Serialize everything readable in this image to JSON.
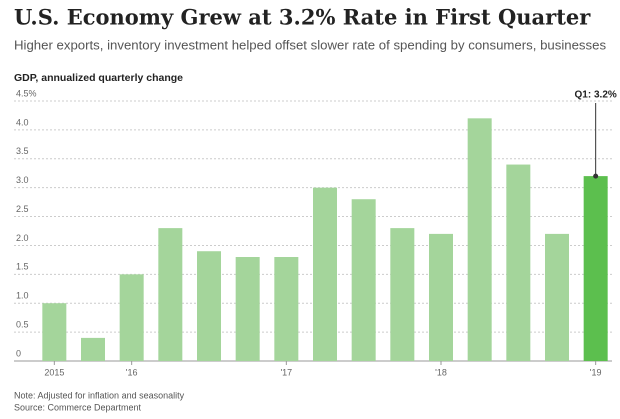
{
  "chart_data": {
    "type": "bar",
    "title": "U.S. Economy Grew at 3.2% Rate in First Quarter",
    "subtitle": "Higher exports, inventory investment helped offset slower rate of spending by consumers, businesses",
    "y_label": "GDP, annualized quarterly change",
    "annotation": "Q1: 3.2%",
    "notes": [
      "Note: Adjusted for inflation and seasonality",
      "Source: Commerce Department"
    ],
    "categories": [
      "2015",
      null,
      "'16",
      null,
      null,
      null,
      "'17",
      null,
      null,
      null,
      "'18",
      null,
      null,
      null,
      "'19"
    ],
    "values": [
      1.0,
      0.4,
      1.5,
      2.3,
      1.9,
      1.8,
      1.8,
      3.0,
      2.8,
      2.3,
      2.2,
      4.2,
      3.4,
      2.2,
      3.2
    ],
    "colors": [
      "#a4d59b",
      "#a4d59b",
      "#a4d59b",
      "#a4d59b",
      "#a4d59b",
      "#a4d59b",
      "#a4d59b",
      "#a4d59b",
      "#a4d59b",
      "#a4d59b",
      "#a4d59b",
      "#a4d59b",
      "#a4d59b",
      "#a4d59b",
      "#5cbf4e"
    ],
    "ylim": [
      0,
      4.5
    ],
    "yticks": [
      0,
      0.5,
      {
        "value": 1,
        "label": "1.0"
      },
      1.5,
      {
        "value": 2,
        "label": "2.0"
      },
      2.5,
      {
        "value": 3,
        "label": "3.0"
      },
      3.5,
      {
        "value": 4,
        "label": "4.0"
      },
      {
        "value": 4.5,
        "label": "4.5%"
      }
    ],
    "grid": true
  }
}
